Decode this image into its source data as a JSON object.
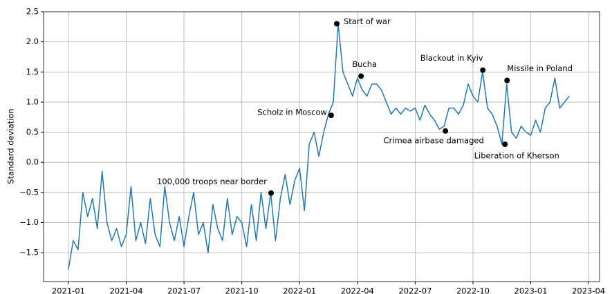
{
  "chart_data": {
    "type": "line",
    "ylabel": "Standard deviation",
    "x": [
      0,
      0.25,
      0.5,
      0.75,
      1,
      1.25,
      1.5,
      1.75,
      2,
      2.25,
      2.5,
      2.75,
      3,
      3.25,
      3.5,
      3.75,
      4,
      4.25,
      4.5,
      4.75,
      5,
      5.25,
      5.5,
      5.75,
      6,
      6.25,
      6.5,
      6.75,
      7,
      7.25,
      7.5,
      7.75,
      8,
      8.25,
      8.5,
      8.75,
      9,
      9.25,
      9.5,
      9.75,
      10,
      10.25,
      10.5,
      10.75,
      11,
      11.25,
      11.5,
      11.75,
      12,
      12.25,
      12.5,
      12.75,
      13,
      13.25,
      13.5,
      13.75,
      14,
      14.25,
      14.5,
      14.75,
      15,
      15.25,
      15.5,
      15.75,
      16,
      16.25,
      16.5,
      16.75,
      17,
      17.25,
      17.5,
      17.75,
      18,
      18.25,
      18.5,
      18.75,
      19,
      19.25,
      19.5,
      19.75,
      20,
      20.25,
      20.5,
      20.75,
      21,
      21.25,
      21.5,
      21.75,
      22,
      22.25,
      22.5,
      22.75,
      23,
      23.25,
      23.5,
      23.75,
      24,
      24.25,
      24.5,
      24.75,
      25,
      25.25,
      25.5,
      25.75,
      26
    ],
    "series": [
      {
        "color": "#1f77b4",
        "values": [
          -1.78,
          -1.3,
          -1.45,
          -0.5,
          -0.9,
          -0.6,
          -1.1,
          -0.15,
          -1.0,
          -1.3,
          -1.1,
          -1.4,
          -1.2,
          -0.4,
          -1.3,
          -1.0,
          -1.35,
          -0.6,
          -1.2,
          -1.4,
          -0.4,
          -1.0,
          -1.3,
          -0.9,
          -1.4,
          -0.9,
          -0.5,
          -1.2,
          -1.0,
          -1.5,
          -0.7,
          -1.1,
          -1.3,
          -0.6,
          -1.2,
          -0.9,
          -1.0,
          -1.4,
          -0.7,
          -1.3,
          -0.5,
          -1.1,
          -0.51,
          -1.3,
          -0.6,
          -0.2,
          -0.7,
          -0.3,
          -0.1,
          -0.8,
          0.3,
          0.5,
          0.1,
          0.5,
          0.8,
          1.0,
          2.3,
          1.5,
          1.3,
          1.1,
          1.4,
          1.2,
          1.1,
          1.3,
          1.3,
          1.2,
          1.0,
          0.8,
          0.9,
          0.8,
          0.9,
          0.85,
          0.9,
          0.7,
          0.95,
          0.8,
          0.7,
          0.55,
          0.6,
          0.9,
          0.9,
          0.8,
          0.95,
          1.3,
          1.1,
          1.0,
          1.5,
          0.9,
          0.8,
          0.6,
          0.3,
          1.3,
          0.5,
          0.4,
          0.6,
          0.5,
          0.45,
          0.7,
          0.5,
          0.9,
          1.0,
          1.4,
          0.9,
          1.0,
          1.1
        ]
      }
    ],
    "annotations": [
      {
        "text": "100,000 troops near border",
        "x": 10.52,
        "y": -0.51
      },
      {
        "text": "Scholz in Moscow",
        "x": 13.64,
        "y": 0.78
      },
      {
        "text": "Start of war",
        "x": 13.93,
        "y": 2.3
      },
      {
        "text": "Bucha",
        "x": 15.19,
        "y": 1.43
      },
      {
        "text": "Crimea airbase damaged",
        "x": 19.57,
        "y": 0.52
      },
      {
        "text": "Blackout in Kyiv",
        "x": 21.51,
        "y": 1.53
      },
      {
        "text": "Liberation of Kherson",
        "x": 22.66,
        "y": 0.3
      },
      {
        "text": "Missile in Poland",
        "x": 22.77,
        "y": 1.36
      }
    ],
    "xlim": [
      -1.29,
      27.57
    ],
    "xticks": [
      {
        "value": 0,
        "label": "2021-01"
      },
      {
        "value": 3,
        "label": "2021-04"
      },
      {
        "value": 6,
        "label": "2021-07"
      },
      {
        "value": 9,
        "label": "2021-10"
      },
      {
        "value": 12,
        "label": "2022-01"
      },
      {
        "value": 15,
        "label": "2022-04"
      },
      {
        "value": 18,
        "label": "2022-07"
      },
      {
        "value": 21,
        "label": "2022-10"
      },
      {
        "value": 24,
        "label": "2023-01"
      },
      {
        "value": 27,
        "label": "2023-04"
      }
    ],
    "ylim": [
      -1.98,
      2.5
    ],
    "yticks": [
      {
        "value": -1.5,
        "label": "−1.5"
      },
      {
        "value": -1.0,
        "label": "−1.0"
      },
      {
        "value": -0.5,
        "label": "−0.5"
      },
      {
        "value": 0,
        "label": "0.0"
      },
      0.5,
      {
        "value": 1.0,
        "label": "1.0"
      },
      1.5,
      {
        "value": 2.0,
        "label": "2.0"
      },
      2.5
    ],
    "grid": true
  }
}
